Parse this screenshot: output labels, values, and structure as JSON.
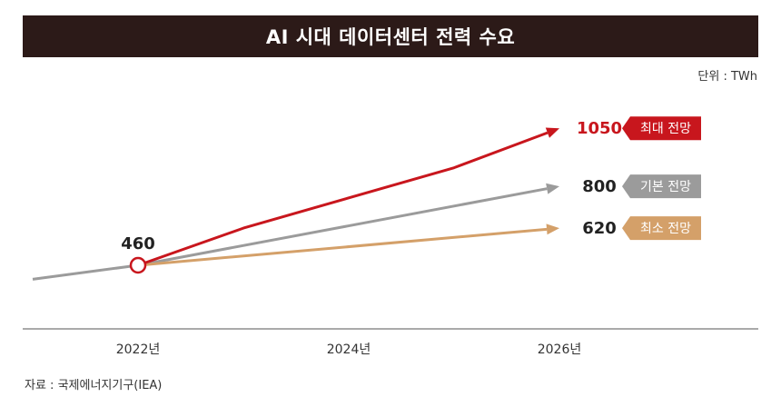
{
  "title": "AI 시대 데이터센터 전력 수요",
  "unit_label": "단위 : TWh",
  "source_label": "자료 : 국제에너지기구(IEA)",
  "colors": {
    "title_bg": "#2c1a18",
    "max": "#c8161d",
    "base": "#9b9b9b",
    "min": "#d4a069",
    "axis": "#555555"
  },
  "chart_data": {
    "type": "line",
    "xlabel": "",
    "ylabel": "",
    "unit": "TWh",
    "x_ticks": [
      "2022년",
      "2024년",
      "2026년"
    ],
    "start": {
      "x": "2022년",
      "value": 460,
      "label": "460"
    },
    "series": [
      {
        "name": "최대 전망",
        "key": "max",
        "end_label": "1050",
        "points": [
          {
            "x": 2022,
            "y": 460
          },
          {
            "x": 2023,
            "y": 620
          },
          {
            "x": 2025,
            "y": 880
          },
          {
            "x": 2026,
            "y": 1050
          }
        ]
      },
      {
        "name": "기본 전망",
        "key": "base",
        "end_label": "800",
        "points": [
          {
            "x": 2021,
            "y": 400
          },
          {
            "x": 2022,
            "y": 460
          },
          {
            "x": 2026,
            "y": 800
          }
        ]
      },
      {
        "name": "최소 전망",
        "key": "min",
        "end_label": "620",
        "points": [
          {
            "x": 2022,
            "y": 460
          },
          {
            "x": 2026,
            "y": 620
          }
        ]
      }
    ]
  }
}
